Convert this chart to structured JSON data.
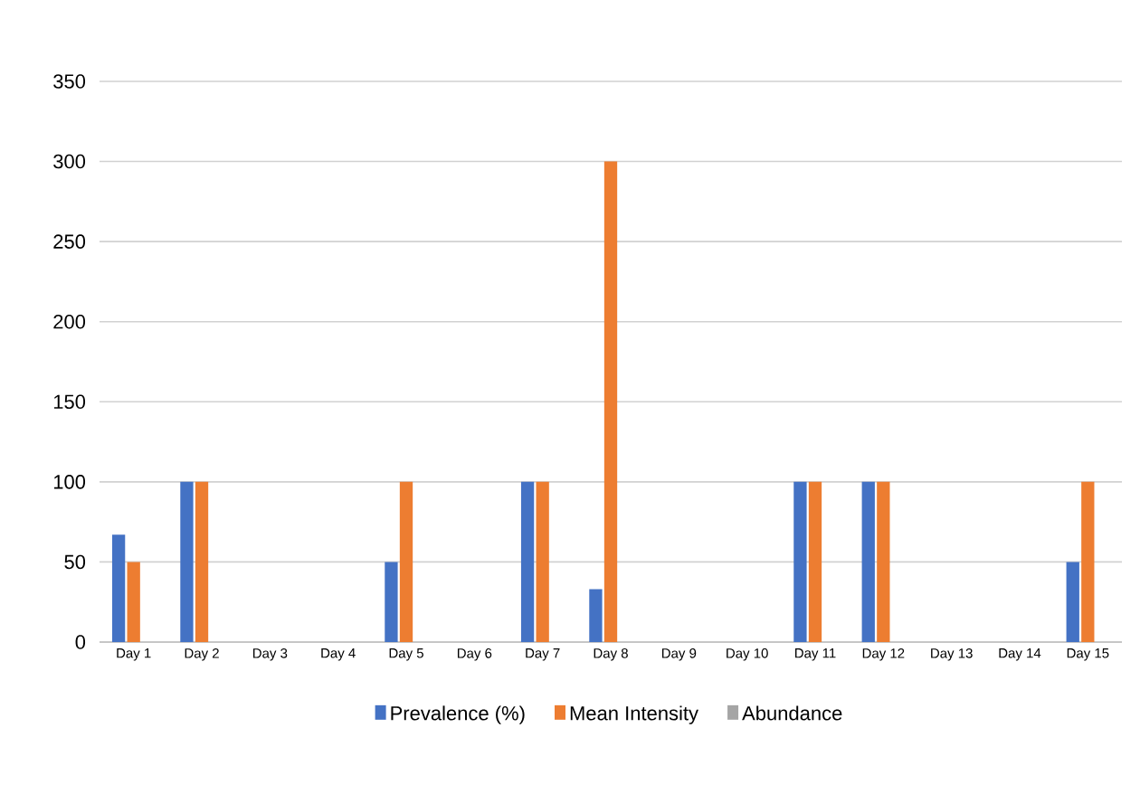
{
  "chart_data": {
    "type": "bar",
    "categories": [
      "Day 1",
      "Day 2",
      "Day 3",
      "Day 4",
      "Day 5",
      "Day 6",
      "Day 7",
      "Day 8",
      "Day 9",
      "Day 10",
      "Day 11",
      "Day 12",
      "Day 13",
      "Day 14",
      "Day 15"
    ],
    "series": [
      {
        "name": "Prevalence (%)",
        "color": "#4472c4",
        "values": [
          67,
          100,
          null,
          null,
          50,
          null,
          100,
          33,
          null,
          null,
          100,
          100,
          null,
          null,
          50
        ]
      },
      {
        "name": "Mean Intensity",
        "color": "#ed7d31",
        "values": [
          50,
          100,
          null,
          null,
          100,
          null,
          100,
          300,
          null,
          null,
          100,
          100,
          null,
          null,
          100
        ]
      },
      {
        "name": "Abundance",
        "color": "#a5a5a5",
        "values": [
          null,
          null,
          null,
          null,
          null,
          null,
          null,
          null,
          null,
          null,
          null,
          null,
          null,
          null,
          null
        ]
      }
    ],
    "ylim": [
      0,
      350
    ],
    "yticks": [
      0,
      50,
      100,
      150,
      200,
      250,
      300,
      350
    ],
    "grid": "y",
    "legend": "bottom"
  }
}
